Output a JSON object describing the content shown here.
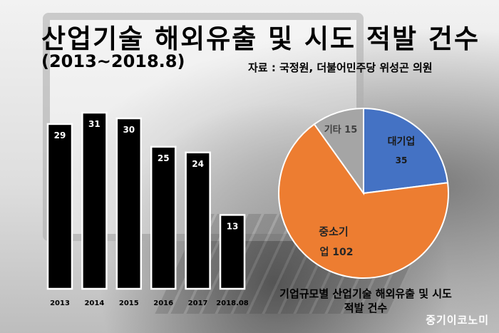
{
  "header": {
    "title": "산업기술 해외유출 및 시도 적발 건수",
    "subtitle": "(2013~2018.8)",
    "source": "자료 : 국정원, 더불어민주당 위성곤 의원"
  },
  "chart_data": [
    {
      "type": "bar",
      "categories": [
        "2013",
        "2014",
        "2015",
        "2016",
        "2017",
        "2018.08"
      ],
      "values": [
        29,
        31,
        30,
        25,
        24,
        13
      ],
      "ylim": [
        0,
        31
      ],
      "grid": false,
      "colors": {
        "bar": "#000000",
        "border": "#ffffff",
        "label": "#ffffff"
      }
    },
    {
      "type": "pie",
      "title": "기업규모별 산업기술 해외유출 및 시도 적발 건수",
      "slices": [
        {
          "label": "대기업",
          "value": 35,
          "color": "#4472c4"
        },
        {
          "label": "중소기업",
          "value": 102,
          "color": "#ed7d31"
        },
        {
          "label": "기타",
          "value": 15,
          "color": "#a5a5a5"
        }
      ]
    }
  ],
  "pie_labels": {
    "large": {
      "name": "대기업",
      "value": "35"
    },
    "sme": {
      "line1": "중소기",
      "line2": "업 102"
    },
    "other": "기타 15"
  },
  "watermark": "중기이코노미"
}
